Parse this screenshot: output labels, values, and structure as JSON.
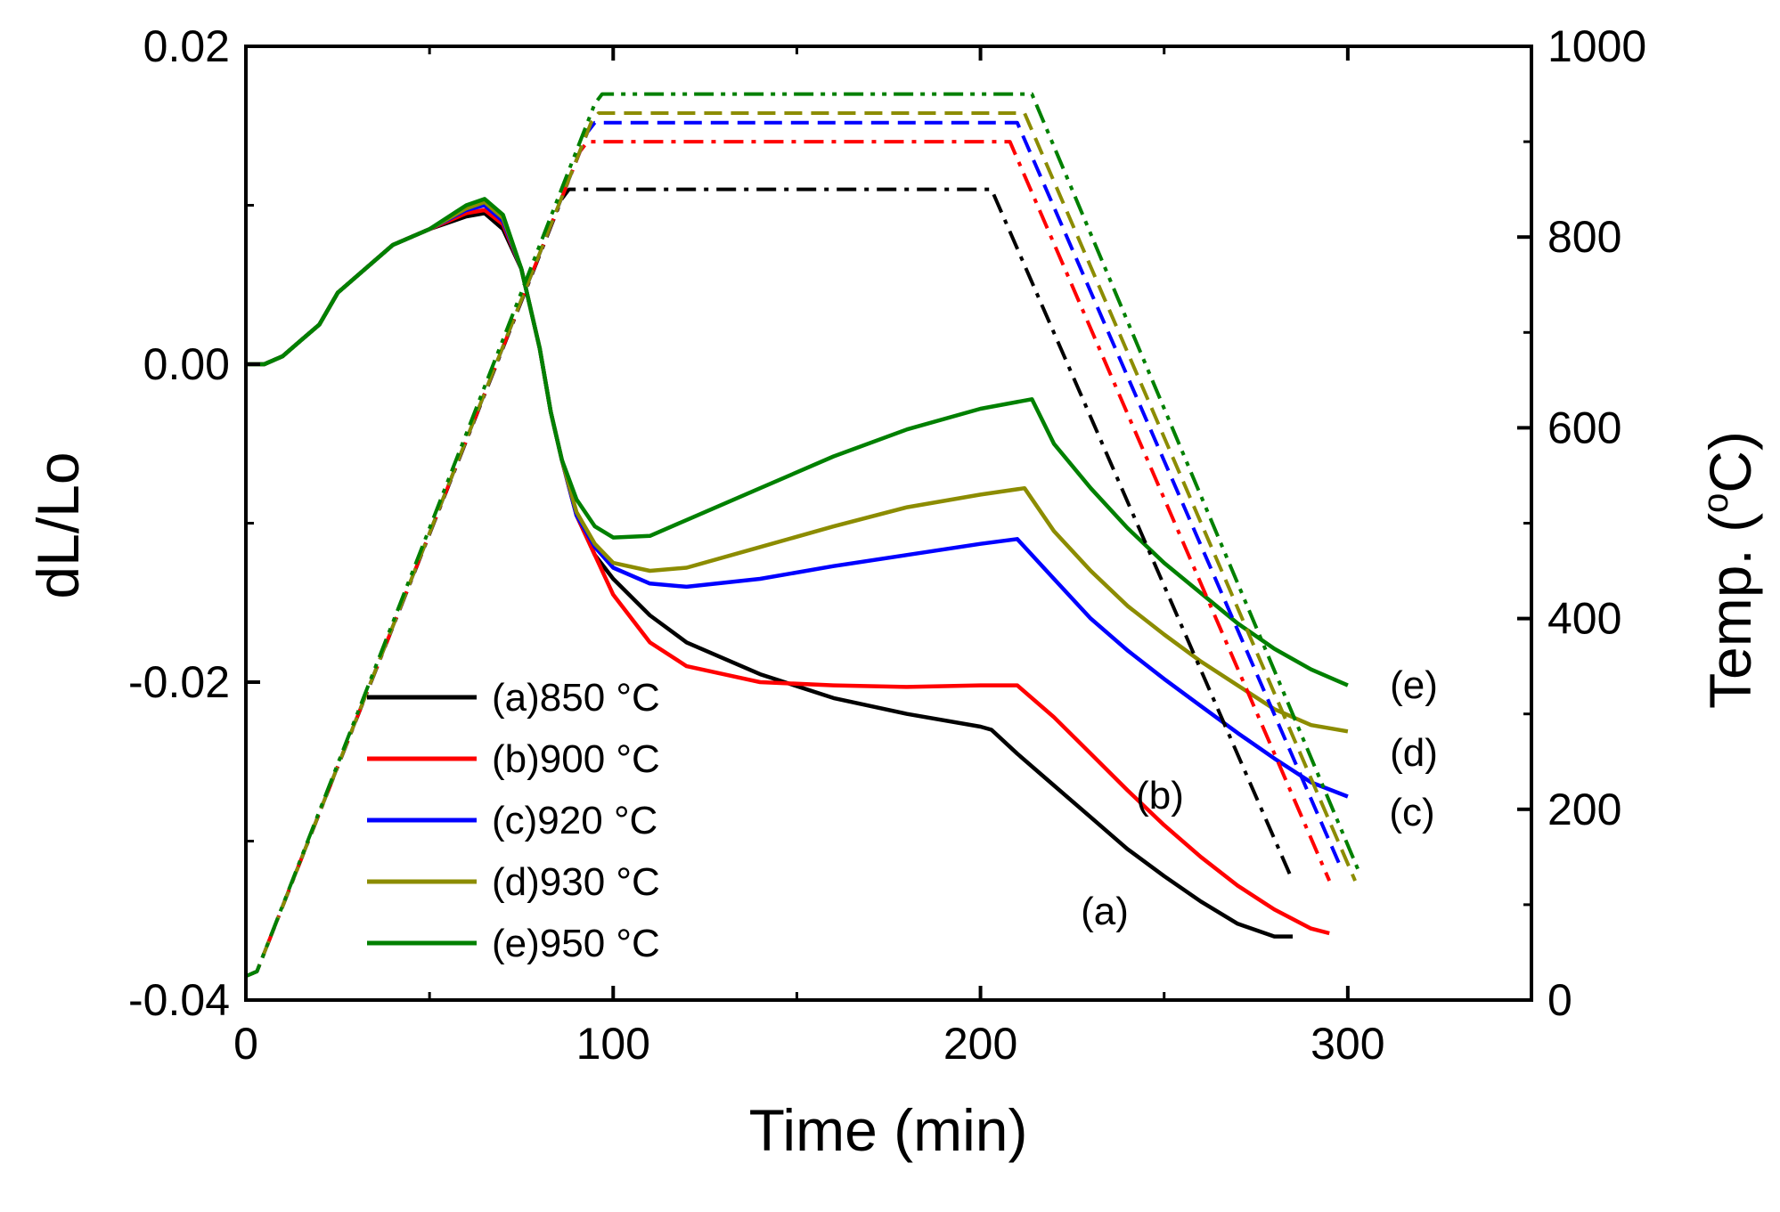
{
  "chart_data": {
    "type": "line",
    "title": "",
    "xlabel": "Time (min)",
    "ylabel_left": "dL/Lo",
    "ylabel_right": {
      "base": "Temp. (",
      "sup": "o",
      "unit": "C)"
    },
    "xlim": [
      0,
      350
    ],
    "ylim_left": [
      -0.04,
      0.02
    ],
    "ylim_right": [
      0,
      1000
    ],
    "xticks": [
      0,
      100,
      200,
      300
    ],
    "xtick_labels": [
      "0",
      "100",
      "200",
      "300"
    ],
    "yticks_left": [
      -0.04,
      -0.02,
      0.0,
      0.02
    ],
    "ytick_labels_left": [
      "-0.04",
      "-0.02",
      "0.00",
      "0.02"
    ],
    "yticks_right": [
      0,
      200,
      400,
      600,
      800,
      1000
    ],
    "ytick_labels_right": [
      "0",
      "200",
      "400",
      "600",
      "800",
      "1000"
    ],
    "legend": {
      "position": "bottom-left",
      "entries": [
        "(a)850 °C",
        "(b)900 °C",
        "(c)920 °C",
        "(d)930 °C",
        "(e)950 °C"
      ]
    },
    "curve_labels": [
      "(a)",
      "(b)",
      "(c)",
      "(d)",
      "(e)"
    ],
    "series": [
      {
        "name": "(a)850 °C",
        "axis": "left",
        "color": "#000000",
        "style": "solid",
        "x": [
          0,
          5,
          10,
          15,
          20,
          25,
          30,
          40,
          50,
          60,
          65,
          70,
          75,
          80,
          83,
          86,
          90,
          95,
          100,
          110,
          120,
          140,
          160,
          180,
          200,
          203,
          210,
          220,
          230,
          240,
          250,
          260,
          270,
          280,
          285
        ],
        "y": [
          0,
          0,
          0.0005,
          0.0015,
          0.0025,
          0.0045,
          0.0055,
          0.0075,
          0.0085,
          0.0093,
          0.0095,
          0.0085,
          0.006,
          0.001,
          -0.003,
          -0.006,
          -0.0095,
          -0.012,
          -0.0135,
          -0.0158,
          -0.0175,
          -0.0195,
          -0.021,
          -0.022,
          -0.0228,
          -0.023,
          -0.0245,
          -0.0265,
          -0.0285,
          -0.0305,
          -0.0322,
          -0.0338,
          -0.0352,
          -0.036,
          -0.036
        ]
      },
      {
        "name": "(b)900 °C",
        "axis": "left",
        "color": "#ff0000",
        "style": "solid",
        "x": [
          0,
          5,
          10,
          15,
          20,
          25,
          30,
          40,
          50,
          60,
          65,
          70,
          75,
          80,
          83,
          86,
          90,
          95,
          100,
          110,
          120,
          140,
          160,
          180,
          200,
          210,
          220,
          230,
          240,
          250,
          260,
          270,
          280,
          290,
          295
        ],
        "y": [
          0,
          0,
          0.0005,
          0.0015,
          0.0025,
          0.0045,
          0.0055,
          0.0075,
          0.0085,
          0.0095,
          0.0097,
          0.0088,
          0.006,
          0.001,
          -0.003,
          -0.006,
          -0.0095,
          -0.012,
          -0.0145,
          -0.0175,
          -0.019,
          -0.02,
          -0.0202,
          -0.0203,
          -0.0202,
          -0.0202,
          -0.0222,
          -0.0245,
          -0.0268,
          -0.029,
          -0.031,
          -0.0328,
          -0.0343,
          -0.0355,
          -0.0358
        ]
      },
      {
        "name": "(c)920 °C",
        "axis": "left",
        "color": "#0000ff",
        "style": "solid",
        "x": [
          0,
          5,
          10,
          15,
          20,
          25,
          30,
          40,
          50,
          60,
          65,
          70,
          75,
          80,
          83,
          86,
          90,
          95,
          100,
          110,
          120,
          140,
          160,
          180,
          200,
          210,
          220,
          230,
          240,
          250,
          260,
          270,
          280,
          290,
          300
        ],
        "y": [
          0,
          0,
          0.0005,
          0.0015,
          0.0025,
          0.0045,
          0.0055,
          0.0075,
          0.0085,
          0.0097,
          0.01,
          0.009,
          0.006,
          0.001,
          -0.003,
          -0.006,
          -0.0095,
          -0.0115,
          -0.0128,
          -0.0138,
          -0.014,
          -0.0135,
          -0.0127,
          -0.012,
          -0.0113,
          -0.011,
          -0.0135,
          -0.016,
          -0.018,
          -0.0198,
          -0.0215,
          -0.0232,
          -0.0248,
          -0.0263,
          -0.0272
        ]
      },
      {
        "name": "(d)930 °C",
        "axis": "left",
        "color": "#8c8c00",
        "style": "solid",
        "x": [
          0,
          5,
          10,
          15,
          20,
          25,
          30,
          40,
          50,
          60,
          65,
          70,
          75,
          80,
          83,
          86,
          90,
          95,
          100,
          110,
          120,
          140,
          160,
          180,
          200,
          212,
          220,
          230,
          240,
          250,
          260,
          270,
          280,
          290,
          300
        ],
        "y": [
          0,
          0,
          0.0005,
          0.0015,
          0.0025,
          0.0045,
          0.0055,
          0.0075,
          0.0085,
          0.0098,
          0.0102,
          0.0092,
          0.006,
          0.001,
          -0.003,
          -0.006,
          -0.0093,
          -0.0113,
          -0.0125,
          -0.013,
          -0.0128,
          -0.0115,
          -0.0102,
          -0.009,
          -0.0082,
          -0.0078,
          -0.0105,
          -0.013,
          -0.0152,
          -0.017,
          -0.0187,
          -0.0202,
          -0.0217,
          -0.0227,
          -0.0231
        ]
      },
      {
        "name": "(e)950 °C",
        "axis": "left",
        "color": "#008000",
        "style": "solid",
        "x": [
          0,
          5,
          10,
          15,
          20,
          25,
          30,
          40,
          50,
          60,
          65,
          70,
          75,
          80,
          83,
          86,
          90,
          95,
          100,
          110,
          120,
          140,
          160,
          180,
          200,
          214,
          220,
          230,
          240,
          250,
          260,
          270,
          280,
          290,
          300
        ],
        "y": [
          0,
          0,
          0.0005,
          0.0015,
          0.0025,
          0.0045,
          0.0055,
          0.0075,
          0.0085,
          0.01,
          0.0104,
          0.0094,
          0.006,
          0.001,
          -0.003,
          -0.006,
          -0.0085,
          -0.0102,
          -0.0109,
          -0.0108,
          -0.0098,
          -0.0078,
          -0.0058,
          -0.0041,
          -0.0028,
          -0.0022,
          -0.005,
          -0.0078,
          -0.0103,
          -0.0125,
          -0.0144,
          -0.0163,
          -0.0179,
          -0.0192,
          -0.0202
        ]
      },
      {
        "name": "(a)850 °C temperature",
        "axis": "right",
        "color": "#000000",
        "style": "dashdot",
        "x": [
          0,
          3,
          86,
          88,
          203,
          285
        ],
        "y": [
          25,
          30,
          840,
          850,
          850,
          125
        ]
      },
      {
        "name": "(b)900 °C temperature",
        "axis": "right",
        "color": "#ff0000",
        "style": "dashdot",
        "x": [
          0,
          3,
          91,
          93,
          208,
          295
        ],
        "y": [
          25,
          30,
          890,
          900,
          900,
          125
        ]
      },
      {
        "name": "(c)920 °C temperature",
        "axis": "right",
        "color": "#0000ff",
        "style": "dashed",
        "x": [
          0,
          3,
          93,
          95,
          210,
          298
        ],
        "y": [
          25,
          30,
          910,
          920,
          920,
          140
        ]
      },
      {
        "name": "(d)930 °C temperature",
        "axis": "right",
        "color": "#8c8c00",
        "style": "dashed",
        "x": [
          0,
          3,
          94,
          96,
          212,
          302
        ],
        "y": [
          25,
          30,
          920,
          930,
          930,
          125
        ]
      },
      {
        "name": "(e)950 °C temperature",
        "axis": "right",
        "color": "#008000",
        "style": "dashdotdot",
        "x": [
          0,
          3,
          95,
          97,
          214,
          303
        ],
        "y": [
          25,
          30,
          940,
          950,
          950,
          135
        ]
      }
    ]
  }
}
